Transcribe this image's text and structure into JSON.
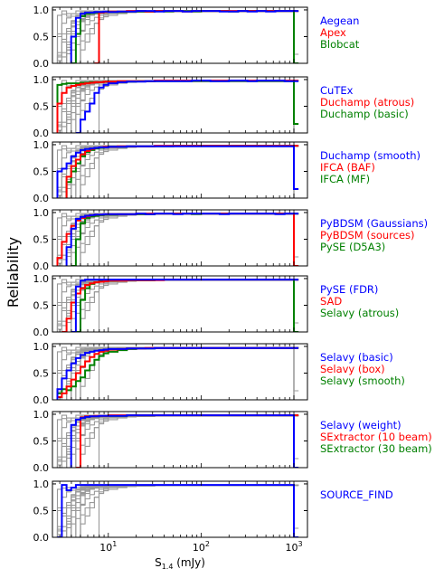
{
  "chart_data": {
    "type": "line",
    "ylabel": "Reliability",
    "xlabel_main": "S",
    "xlabel_sub": "1.4",
    "xlabel_unit": " (mJy)",
    "xscale": "log",
    "xlim": [
      2.5,
      1400
    ],
    "ylim": [
      0.0,
      1.05
    ],
    "x_tick_labels": [
      {
        "value": 10,
        "mantissa": "10",
        "exp": "1"
      },
      {
        "value": 100,
        "mantissa": "10",
        "exp": "2"
      },
      {
        "value": 1000,
        "mantissa": "10",
        "exp": "3"
      }
    ],
    "y_tick_labels": [
      {
        "value": 0.0,
        "label": "0.0"
      },
      {
        "value": 0.5,
        "label": "0.5"
      },
      {
        "value": 1.0,
        "label": "1.0"
      }
    ],
    "bin_edges": [
      2.83,
      3.16,
      3.55,
      3.98,
      4.47,
      5.01,
      5.62,
      6.31,
      7.08,
      7.94,
      8.91,
      10.0,
      12.59,
      15.85,
      19.95,
      25.12,
      31.62,
      39.81,
      50.12,
      63.1,
      79.43,
      100.0,
      125.9,
      158.5,
      199.5,
      251.2,
      316.2,
      398.1,
      501.2,
      631.0,
      794.3,
      1000.0,
      1122.0
    ],
    "colors": {
      "blue": "#0000ff",
      "red": "#ff0000",
      "green": "#008000",
      "gray": "#999999"
    },
    "panels": [
      {
        "highlighted": [
          {
            "name": "Aegean",
            "color": "#0000ff",
            "values": [
              null,
              null,
              null,
              0.5,
              0.85,
              0.93,
              0.95,
              0.95,
              0.96,
              0.96,
              0.97,
              0.96,
              0.97,
              0.97,
              0.98,
              0.98,
              0.97,
              0.98,
              0.98,
              0.97,
              0.98,
              0.98,
              0.98,
              0.97,
              0.97,
              0.98,
              0.97,
              0.98,
              0.97,
              0.98,
              0.98,
              0.98
            ]
          },
          {
            "name": "Apex",
            "color": "#ff0000",
            "values": [
              null,
              null,
              null,
              null,
              null,
              null,
              null,
              null,
              0.0,
              0.95,
              0.96,
              0.97,
              0.97,
              0.98,
              0.98,
              0.97,
              0.98,
              0.98,
              0.98,
              0.97,
              0.98,
              0.98,
              0.98,
              0.98,
              0.98,
              0.98,
              0.98,
              0.98,
              0.98,
              0.98,
              0.98,
              0.98
            ]
          },
          {
            "name": "Blobcat",
            "color": "#008000",
            "values": [
              null,
              null,
              null,
              0.0,
              0.55,
              0.88,
              0.93,
              0.94,
              0.95,
              0.95,
              0.96,
              0.96,
              0.96,
              0.97,
              0.97,
              0.97,
              0.98,
              0.97,
              0.98,
              0.98,
              0.97,
              0.98,
              0.98,
              0.98,
              0.97,
              0.98,
              0.98,
              0.98,
              0.98,
              0.98,
              0.98,
              0.0
            ]
          }
        ]
      },
      {
        "highlighted": [
          {
            "name": "CuTEx",
            "color": "#0000ff",
            "values": [
              null,
              null,
              null,
              null,
              0.0,
              0.25,
              0.4,
              0.55,
              0.75,
              0.85,
              0.9,
              0.93,
              0.95,
              0.96,
              0.96,
              0.97,
              0.97,
              0.97,
              0.97,
              0.97,
              0.98,
              0.98,
              0.97,
              0.97,
              0.98,
              0.98,
              0.97,
              0.98,
              0.98,
              0.98,
              0.97,
              0.97
            ]
          },
          {
            "name": "Duchamp (atrous)",
            "color": "#ff0000",
            "values": [
              0.55,
              0.75,
              0.85,
              0.88,
              0.9,
              0.92,
              0.93,
              0.94,
              0.95,
              0.95,
              0.96,
              0.96,
              0.97,
              0.97,
              0.97,
              0.97,
              0.98,
              0.98,
              0.98,
              0.98,
              0.98,
              0.98,
              0.98,
              0.98,
              0.98,
              0.98,
              0.98,
              0.98,
              0.98,
              0.98,
              0.98,
              0.98
            ]
          },
          {
            "name": "Duchamp (basic)",
            "color": "#008000",
            "values": [
              0.9,
              0.92,
              0.93,
              0.93,
              0.93,
              0.94,
              0.94,
              0.95,
              0.95,
              0.95,
              0.96,
              0.96,
              0.96,
              0.96,
              0.97,
              0.97,
              0.97,
              0.97,
              0.97,
              0.97,
              0.97,
              0.97,
              0.97,
              0.97,
              0.97,
              0.97,
              0.97,
              0.97,
              0.97,
              0.97,
              0.97,
              0.17
            ]
          }
        ]
      },
      {
        "highlighted": [
          {
            "name": "Duchamp (smooth)",
            "color": "#0000ff",
            "values": [
              0.5,
              0.55,
              0.65,
              0.78,
              0.85,
              0.9,
              0.92,
              0.93,
              0.94,
              0.95,
              0.95,
              0.96,
              0.96,
              0.97,
              0.97,
              0.97,
              0.97,
              0.97,
              0.97,
              0.97,
              0.97,
              0.97,
              0.97,
              0.97,
              0.97,
              0.97,
              0.97,
              0.97,
              0.97,
              0.97,
              0.97,
              0.17
            ]
          },
          {
            "name": "IFCA (BAF)",
            "color": "#ff0000",
            "values": [
              null,
              null,
              0.4,
              0.6,
              0.72,
              0.82,
              0.88,
              0.92,
              0.94,
              0.95,
              0.96,
              0.96,
              0.97,
              0.97,
              0.97,
              0.97,
              0.98,
              0.98,
              0.98,
              0.98,
              0.98,
              0.98,
              0.98,
              0.98,
              0.98,
              0.98,
              0.98,
              0.98,
              0.98,
              0.98,
              0.98,
              0.98
            ]
          },
          {
            "name": "IFCA (MF)",
            "color": "#008000",
            "values": [
              null,
              null,
              0.3,
              0.5,
              0.65,
              0.78,
              0.86,
              0.9,
              0.93,
              0.94,
              0.95,
              0.96,
              0.96,
              0.97,
              0.97,
              0.97,
              0.97,
              0.97,
              0.98,
              0.98,
              0.98,
              0.98,
              0.98,
              0.98,
              0.98,
              0.98,
              0.98,
              0.98,
              0.98,
              0.98,
              0.98,
              0.98
            ]
          }
        ]
      },
      {
        "highlighted": [
          {
            "name": "PyBDSM (Gaussians)",
            "color": "#0000ff",
            "values": [
              null,
              null,
              0.35,
              0.7,
              0.88,
              0.92,
              0.94,
              0.95,
              0.96,
              0.96,
              0.97,
              0.97,
              0.97,
              0.97,
              0.98,
              0.97,
              0.98,
              0.98,
              0.97,
              0.98,
              0.98,
              0.98,
              0.98,
              0.97,
              0.98,
              0.98,
              0.98,
              0.98,
              0.98,
              0.97,
              0.98,
              0.98
            ]
          },
          {
            "name": "PyBDSM (sources)",
            "color": "#ff0000",
            "values": [
              0.15,
              0.45,
              0.6,
              0.75,
              0.85,
              0.9,
              0.93,
              0.95,
              0.96,
              0.96,
              0.97,
              0.97,
              0.97,
              0.97,
              0.98,
              0.98,
              0.98,
              0.98,
              0.98,
              0.98,
              0.98,
              0.98,
              0.98,
              0.98,
              0.98,
              0.98,
              0.98,
              0.98,
              0.98,
              0.98,
              0.98,
              0.0
            ]
          },
          {
            "name": "PySE (D5A3)",
            "color": "#008000",
            "values": [
              null,
              null,
              null,
              0.0,
              0.5,
              0.8,
              0.9,
              0.93,
              0.94,
              0.95,
              0.96,
              0.96,
              0.97,
              0.97,
              0.97,
              0.97,
              0.98,
              0.98,
              0.98,
              0.98,
              0.97,
              0.98,
              0.98,
              0.98,
              0.98,
              0.98,
              0.98,
              0.98,
              0.98,
              0.98,
              0.98,
              0.98
            ]
          }
        ]
      },
      {
        "highlighted": [
          {
            "name": "PySE (FDR)",
            "color": "#0000ff",
            "values": [
              null,
              null,
              null,
              0.0,
              0.85,
              0.96,
              0.98,
              0.98,
              0.98,
              0.98,
              0.98,
              0.98,
              0.98,
              0.98,
              0.98,
              0.98,
              0.98,
              0.98,
              0.98,
              0.98,
              0.98,
              0.98,
              0.98,
              0.98,
              0.98,
              0.98,
              0.98,
              0.98,
              0.98,
              0.98,
              0.98,
              0.98
            ]
          },
          {
            "name": "SAD",
            "color": "#ff0000",
            "values": [
              null,
              0.0,
              0.25,
              0.55,
              0.72,
              0.82,
              0.88,
              0.91,
              0.93,
              0.94,
              0.95,
              0.96,
              0.96,
              0.97,
              0.97,
              0.97,
              0.97,
              0.98,
              0.98,
              0.98,
              0.98,
              0.98,
              0.98,
              0.98,
              0.98,
              0.98,
              0.98,
              0.98,
              0.98,
              0.98,
              0.98,
              0.98
            ]
          },
          {
            "name": "Selavy (atrous)",
            "color": "#008000",
            "values": [
              null,
              null,
              null,
              null,
              0.0,
              0.6,
              0.82,
              0.9,
              0.93,
              0.95,
              0.96,
              0.96,
              0.97,
              0.97,
              0.97,
              0.97,
              0.98,
              0.98,
              0.98,
              0.98,
              0.98,
              0.98,
              0.98,
              0.98,
              0.98,
              0.98,
              0.98,
              0.98,
              0.98,
              0.98,
              0.98,
              0.0
            ]
          }
        ]
      },
      {
        "highlighted": [
          {
            "name": "Selavy (basic)",
            "color": "#0000ff",
            "values": [
              0.2,
              0.4,
              0.55,
              0.68,
              0.78,
              0.84,
              0.88,
              0.9,
              0.92,
              0.93,
              0.94,
              0.95,
              0.95,
              0.96,
              0.96,
              0.96,
              0.97,
              0.97,
              0.97,
              0.97,
              0.97,
              0.97,
              0.97,
              0.97,
              0.97,
              0.97,
              0.97,
              0.97,
              0.97,
              0.97,
              0.97,
              0.97
            ]
          },
          {
            "name": "Selavy (box)",
            "color": "#ff0000",
            "values": [
              0.05,
              0.12,
              0.25,
              0.38,
              0.5,
              0.62,
              0.72,
              0.8,
              0.86,
              0.9,
              0.92,
              0.94,
              0.95,
              0.96,
              0.96,
              0.97,
              0.97,
              0.97,
              0.97,
              0.97,
              0.97,
              0.97,
              0.97,
              0.97,
              0.97,
              0.97,
              0.97,
              0.97,
              0.97,
              0.97,
              0.97,
              0.97
            ]
          },
          {
            "name": "Selavy (smooth)",
            "color": "#008000",
            "values": [
              0.12,
              0.2,
              0.18,
              0.25,
              0.35,
              0.42,
              0.55,
              0.65,
              0.75,
              0.82,
              0.87,
              0.9,
              0.93,
              0.95,
              0.96,
              0.96,
              0.97,
              0.97,
              0.97,
              0.97,
              0.97,
              0.97,
              0.97,
              0.97,
              0.97,
              0.97,
              0.97,
              0.97,
              0.97,
              0.97,
              0.97,
              0.97
            ]
          }
        ]
      },
      {
        "highlighted": [
          {
            "name": "Selavy (weight)",
            "color": "#0000ff",
            "values": [
              null,
              null,
              null,
              0.8,
              0.9,
              0.93,
              0.95,
              0.96,
              0.96,
              0.97,
              0.97,
              0.97,
              0.97,
              0.98,
              0.98,
              0.98,
              0.98,
              0.98,
              0.98,
              0.98,
              0.98,
              0.98,
              0.98,
              0.98,
              0.98,
              0.98,
              0.98,
              0.98,
              0.98,
              0.98,
              0.98,
              0.0
            ]
          },
          {
            "name": "SExtractor (10 beam)",
            "color": "#ff0000",
            "values": [
              null,
              null,
              null,
              null,
              0.0,
              0.94,
              0.96,
              0.96,
              0.97,
              0.97,
              0.97,
              0.98,
              0.98,
              0.98,
              0.98,
              0.98,
              0.98,
              0.98,
              0.98,
              0.98,
              0.98,
              0.98,
              0.98,
              0.98,
              0.98,
              0.98,
              0.98,
              0.98,
              0.98,
              0.98,
              0.98,
              0.98
            ]
          },
          {
            "name": "SExtractor (30 beam)",
            "color": "#008000",
            "values": [
              null,
              null,
              null,
              null,
              0.0,
              0.93,
              0.95,
              0.96,
              0.96,
              0.97,
              0.97,
              0.97,
              0.97,
              0.98,
              0.98,
              0.98,
              0.98,
              0.98,
              0.98,
              0.98,
              0.98,
              0.98,
              0.98,
              0.98,
              0.98,
              0.98,
              0.98,
              0.98,
              0.98,
              0.98,
              0.98,
              0.98
            ]
          }
        ]
      },
      {
        "highlighted": [
          {
            "name": "SOURCE_FIND",
            "color": "#0000ff",
            "values": [
              0.0,
              0.98,
              0.88,
              0.93,
              0.98,
              0.98,
              0.98,
              0.98,
              0.98,
              0.98,
              0.98,
              0.98,
              0.98,
              0.98,
              0.98,
              0.98,
              0.98,
              0.98,
              0.98,
              0.98,
              0.98,
              0.98,
              0.98,
              0.98,
              0.98,
              0.98,
              0.98,
              0.98,
              0.98,
              0.98,
              0.98,
              0.0
            ]
          }
        ]
      }
    ]
  }
}
